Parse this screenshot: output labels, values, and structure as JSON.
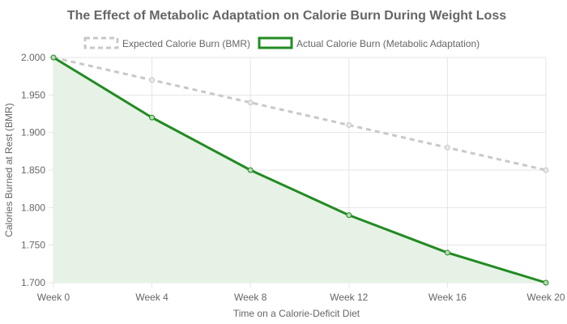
{
  "chart_data": {
    "type": "line",
    "title": "The Effect of Metabolic Adaptation on Calorie Burn During Weight Loss",
    "xlabel": "Time on a Calorie-Deficit Diet",
    "ylabel": "Calories Burned at Rest (BMR)",
    "categories": [
      "Week 0",
      "Week 4",
      "Week 8",
      "Week 12",
      "Week 16",
      "Week 20"
    ],
    "ylim": [
      1.7,
      2.0
    ],
    "yticks": [
      {
        "value": 2.0,
        "label": "2.000"
      },
      {
        "value": 1.95,
        "label": "1.950"
      },
      {
        "value": 1.9,
        "label": "1.900"
      },
      {
        "value": 1.85,
        "label": "1.850"
      },
      {
        "value": 1.8,
        "label": "1.800"
      },
      {
        "value": 1.75,
        "label": "1.750"
      },
      {
        "value": 1.7,
        "label": "1.700"
      }
    ],
    "grid": true,
    "legend_position": "top",
    "series": [
      {
        "name": "Expected Calorie Burn (BMR)",
        "values": [
          2.0,
          1.97,
          1.94,
          1.91,
          1.88,
          1.85
        ],
        "color": "#c8c8c8",
        "style": "dashed",
        "fill": false
      },
      {
        "name": "Actual Calorie Burn (Metabolic Adaptation)",
        "values": [
          2.0,
          1.92,
          1.85,
          1.79,
          1.74,
          1.7
        ],
        "color": "#228b22",
        "style": "solid",
        "fill": true,
        "fill_color": "#e6f2e6"
      }
    ]
  }
}
